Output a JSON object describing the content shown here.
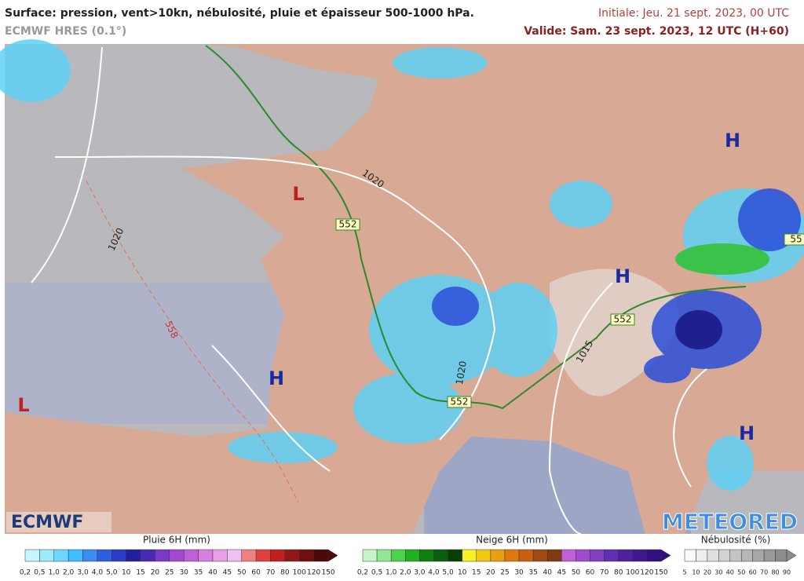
{
  "header": {
    "title": "Surface: pression, vent>10kn, nébulosité, pluie et épaisseur 500-1000 hPa.",
    "model": "ECMWF HRES (0.1°)",
    "initial": "Initiale: Jeu. 21 sept. 2023, 00 UTC",
    "valid": "Valide: Sam. 23 sept. 2023, 12 UTC (H+60)"
  },
  "map": {
    "pressure_centers": [
      "H",
      "H",
      "H",
      "H",
      "L",
      "L"
    ],
    "contour_labels": [
      "1020",
      "1020",
      "552",
      "558",
      "1020",
      "552",
      "552",
      "1015",
      "55"
    ]
  },
  "logos": {
    "left": "ECMWF",
    "right": "METEORED"
  },
  "legend": {
    "rain": {
      "title": "Pluie 6H (mm)",
      "labels": [
        "0,2",
        "0,5",
        "1,0",
        "2,0",
        "3,0",
        "4,0",
        "5,0",
        "10",
        "15",
        "20",
        "25",
        "30",
        "35",
        "40",
        "45",
        "50",
        "60",
        "70",
        "80",
        "100",
        "120",
        "150"
      ]
    },
    "snow": {
      "title": "Neige 6H (mm)",
      "labels": [
        "0,2",
        "0,5",
        "1,0",
        "2,0",
        "3,0",
        "4,0",
        "5,0",
        "10",
        "15",
        "20",
        "25",
        "30",
        "35",
        "40",
        "45",
        "50",
        "60",
        "70",
        "80",
        "100",
        "120",
        "150"
      ]
    },
    "cloud": {
      "title": "Nébulosité (%)",
      "labels": [
        "5",
        "10",
        "20",
        "30",
        "40",
        "50",
        "60",
        "70",
        "80",
        "90"
      ]
    }
  }
}
